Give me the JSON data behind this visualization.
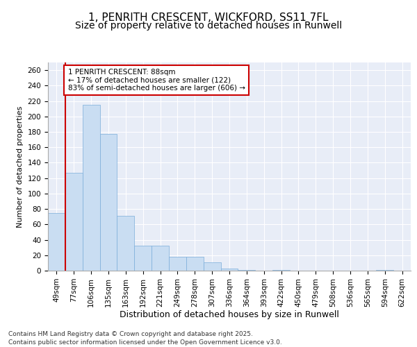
{
  "title_line1": "1, PENRITH CRESCENT, WICKFORD, SS11 7FL",
  "title_line2": "Size of property relative to detached houses in Runwell",
  "xlabel": "Distribution of detached houses by size in Runwell",
  "ylabel": "Number of detached properties",
  "categories": [
    "49sqm",
    "77sqm",
    "106sqm",
    "135sqm",
    "163sqm",
    "192sqm",
    "221sqm",
    "249sqm",
    "278sqm",
    "307sqm",
    "336sqm",
    "364sqm",
    "393sqm",
    "422sqm",
    "450sqm",
    "479sqm",
    "508sqm",
    "536sqm",
    "565sqm",
    "594sqm",
    "622sqm"
  ],
  "values": [
    75,
    127,
    215,
    177,
    71,
    32,
    32,
    18,
    18,
    11,
    3,
    1,
    0,
    1,
    0,
    0,
    0,
    0,
    0,
    1,
    0
  ],
  "bar_color": "#c9ddf2",
  "bar_edge_color": "#7aadda",
  "vline_color": "#cc0000",
  "vline_x_index": 1,
  "annotation_text": "1 PENRITH CRESCENT: 88sqm\n← 17% of detached houses are smaller (122)\n83% of semi-detached houses are larger (606) →",
  "annotation_box_facecolor": "#ffffff",
  "annotation_box_edgecolor": "#cc0000",
  "ylim": [
    0,
    270
  ],
  "yticks": [
    0,
    20,
    40,
    60,
    80,
    100,
    120,
    140,
    160,
    180,
    200,
    220,
    240,
    260
  ],
  "background_color": "#e8edf7",
  "footer_text": "Contains HM Land Registry data © Crown copyright and database right 2025.\nContains public sector information licensed under the Open Government Licence v3.0.",
  "title_fontsize": 11,
  "subtitle_fontsize": 10,
  "xlabel_fontsize": 9,
  "ylabel_fontsize": 8,
  "tick_fontsize": 7.5,
  "annotation_fontsize": 7.5,
  "footer_fontsize": 6.5
}
